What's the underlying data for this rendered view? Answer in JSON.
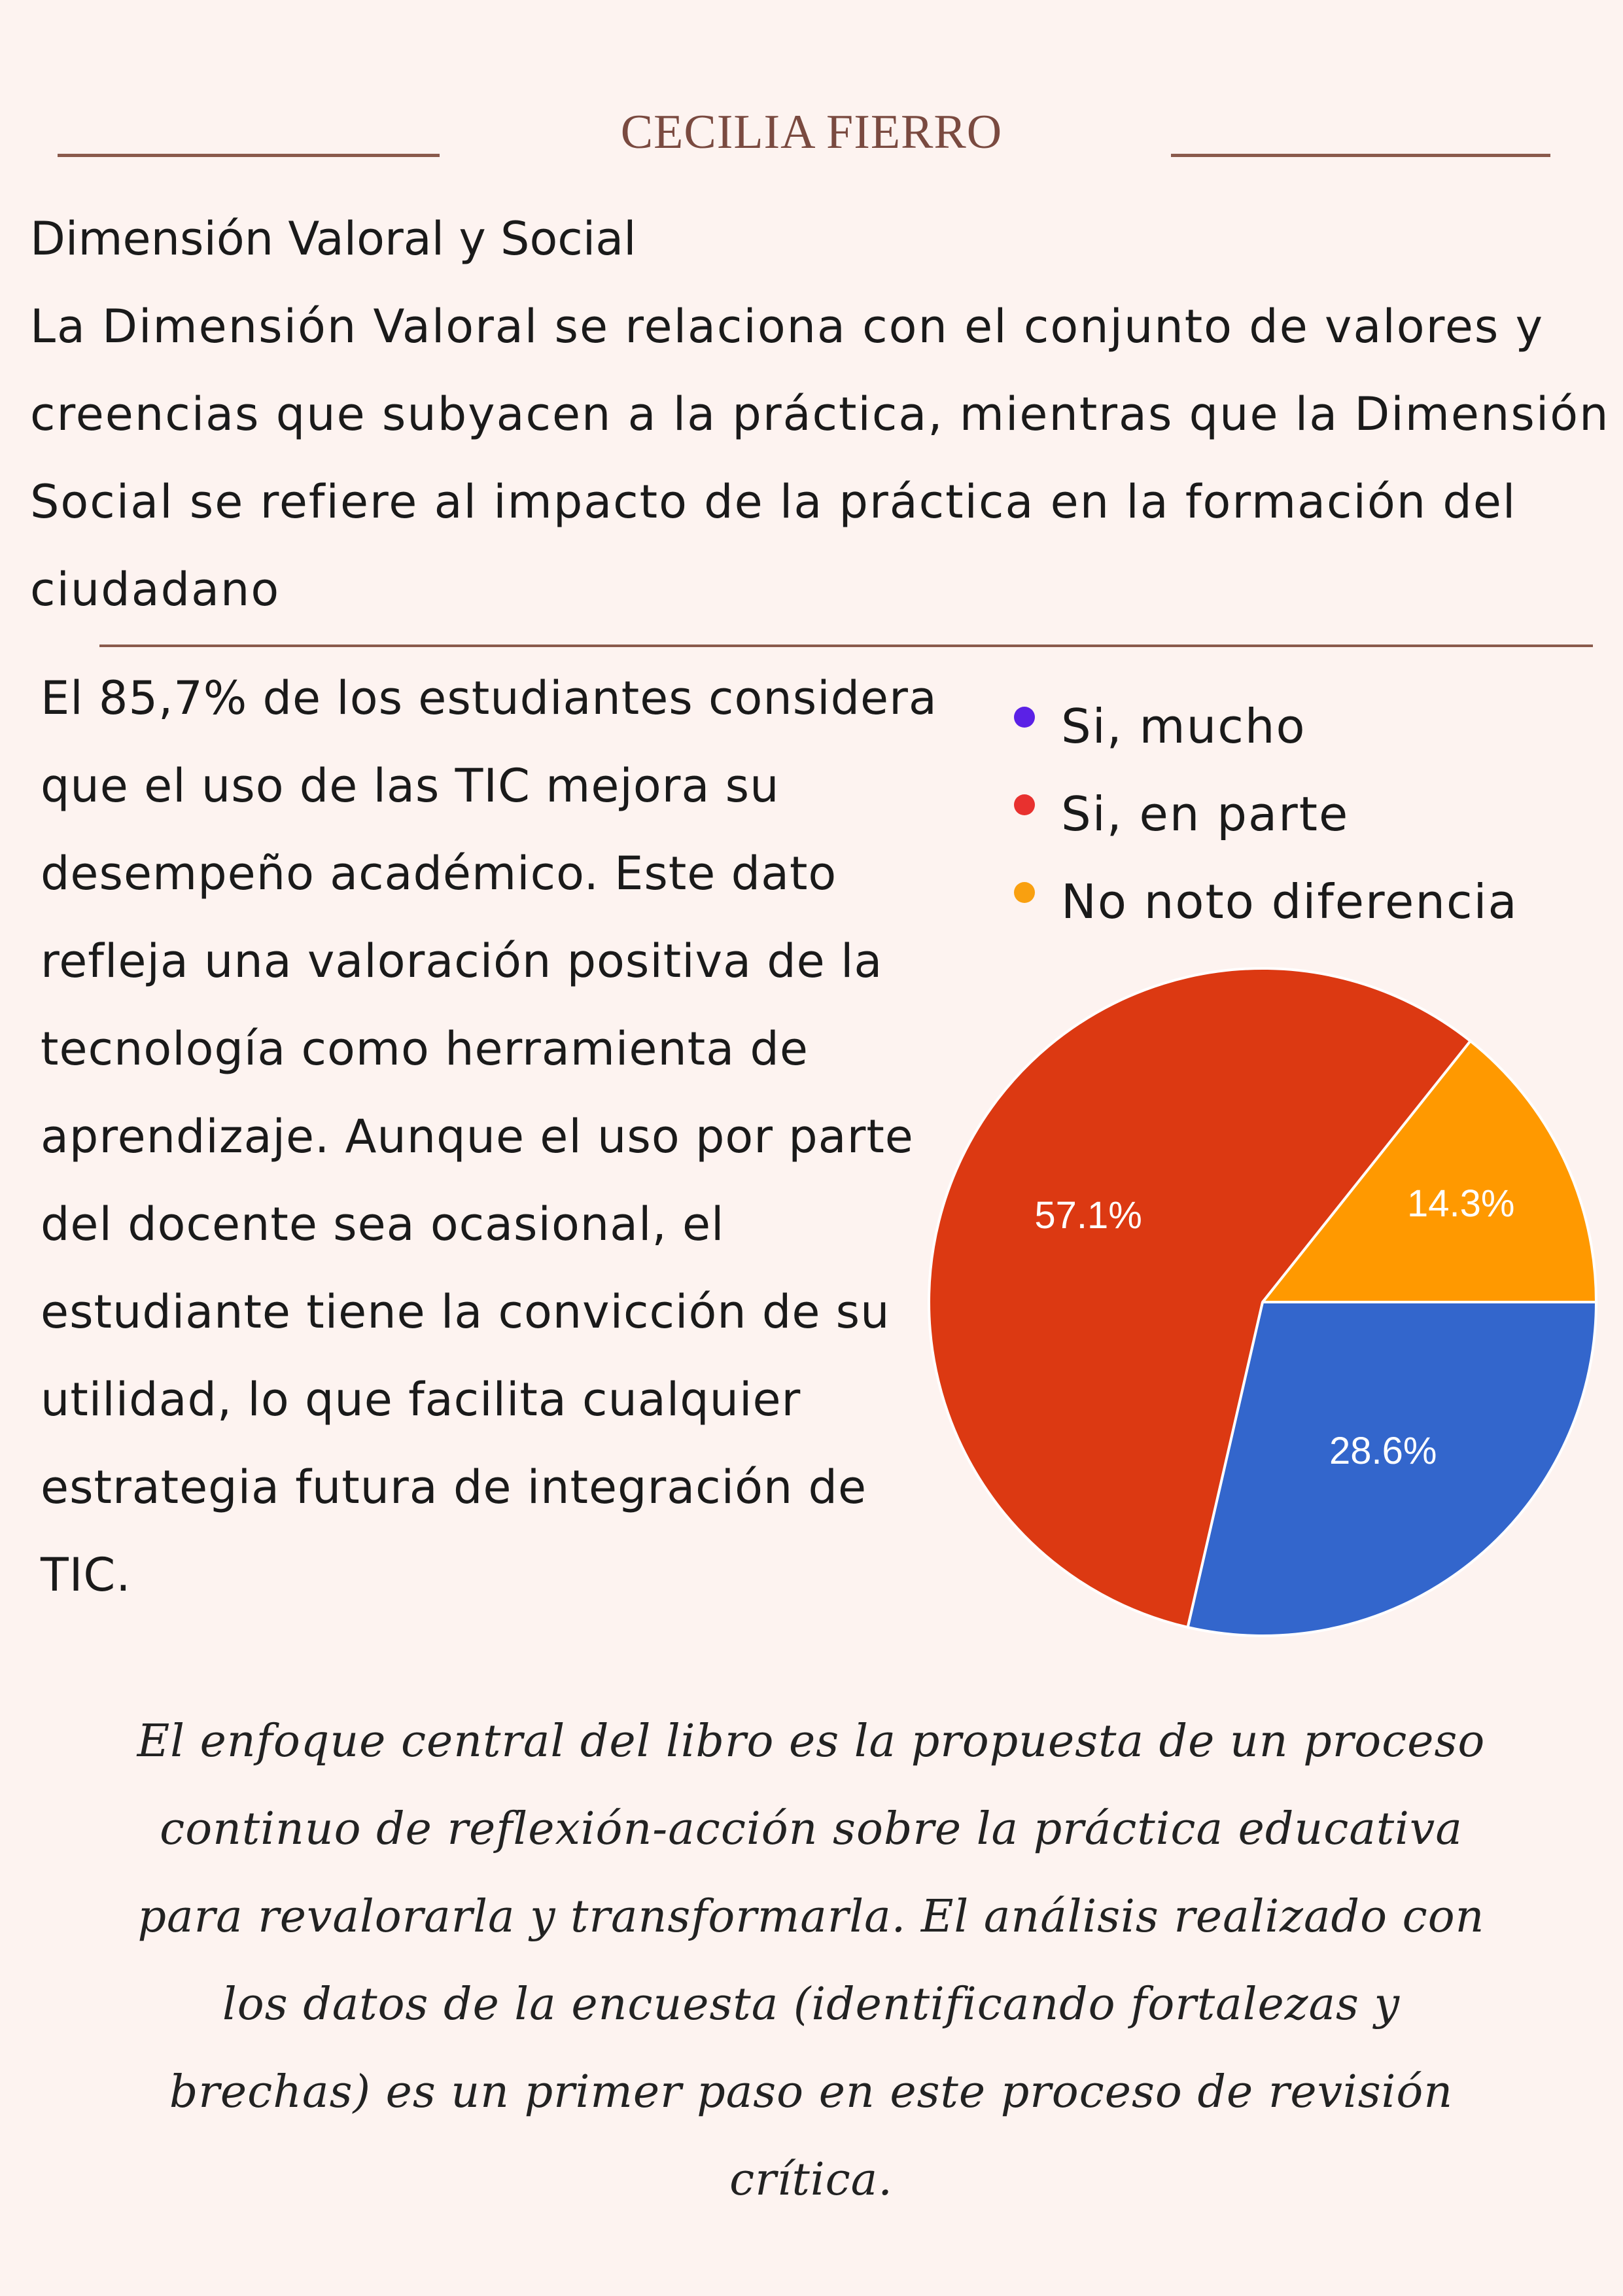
{
  "header": {
    "author": "CECILIA FIERRO"
  },
  "section": {
    "title": "Dimensión Valoral y Social",
    "intro": "La Dimensión Valoral se relaciona con el conjunto de valores y creencias que subyacen a la práctica, mientras que la Dimensión Social se refiere al impacto de la práctica en la formación del ciudadano"
  },
  "finding": {
    "text": "El 85,7% de los estudiantes considera que el uso de las TIC mejora su desempeño académico. Este dato refleja una valoración positiva de la tecnología como herramienta de aprendizaje. Aunque el uso por parte del docente sea ocasional, el estudiante tiene la convicción de su utilidad, lo que facilita cualquier estrategia futura de integración de TIC."
  },
  "chart_data": {
    "type": "pie",
    "title": "",
    "legend_position": "top-right",
    "legend": [
      {
        "label": "Si, mucho",
        "color": "#5b21e6"
      },
      {
        "label": "Si, en parte",
        "color": "#e8312f"
      },
      {
        "label": "No noto diferencia",
        "color": "#f9a010"
      }
    ],
    "slices": [
      {
        "label": "No noto diferencia",
        "value": 14.3,
        "display": "14.3%",
        "color": "#ff9900"
      },
      {
        "label": "Si, mucho",
        "value": 28.6,
        "display": "28.6%",
        "color": "#3366cc"
      },
      {
        "label": "Si, en parte",
        "value": 57.1,
        "display": "57.1%",
        "color": "#dc3912"
      }
    ]
  },
  "conclusion": {
    "text": "El enfoque central del libro es la propuesta de un proceso continuo de reflexión-acción sobre la práctica educativa para revalorarla y transformarla. El análisis realizado con los datos de la encuesta (identificando fortalezas y brechas) es un primer paso en este proceso de revisión crítica."
  }
}
